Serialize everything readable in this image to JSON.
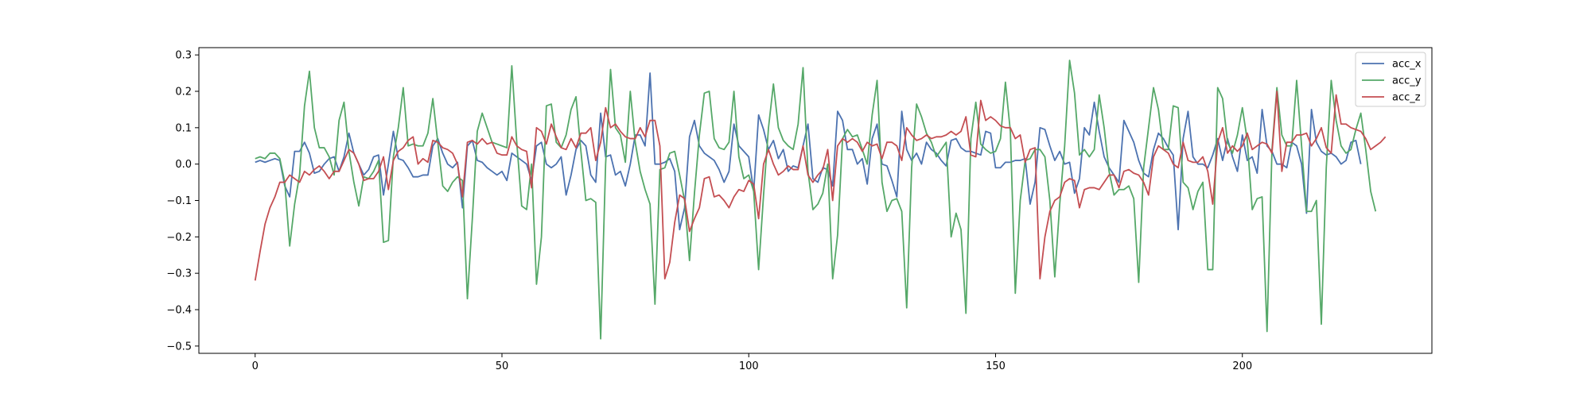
{
  "chart_data": {
    "type": "line",
    "title": "",
    "xlabel": "",
    "ylabel": "",
    "xlim": [
      -11.4,
      238.4
    ],
    "ylim": [
      -0.52,
      0.32
    ],
    "xticks": [
      0,
      50,
      100,
      150,
      200
    ],
    "yticks": [
      0.3,
      0.2,
      0.1,
      0.0,
      -0.1,
      -0.2,
      -0.3,
      -0.4,
      -0.5
    ],
    "ytick_labels": [
      "0.3",
      "0.2",
      "0.1",
      "0.0",
      "−0.1",
      "−0.2",
      "−0.3",
      "−0.4",
      "−0.5"
    ],
    "grid": false,
    "legend_position": "top-right",
    "series": [
      {
        "name": "acc_x",
        "color": "#4c72b0",
        "values": [
          0.005,
          0.01,
          0.005,
          0.01,
          0.015,
          0.01,
          -0.06,
          -0.09,
          0.035,
          0.035,
          0.06,
          0.03,
          -0.025,
          -0.02,
          0.0,
          0.015,
          0.02,
          -0.02,
          0.02,
          0.085,
          0.03,
          0.0,
          -0.03,
          -0.015,
          0.02,
          0.025,
          -0.085,
          0.0,
          0.09,
          0.015,
          0.01,
          -0.01,
          -0.035,
          -0.035,
          -0.03,
          -0.03,
          0.05,
          0.07,
          0.03,
          0.0,
          -0.01,
          0.005,
          -0.12,
          0.05,
          0.065,
          0.01,
          0.005,
          -0.01,
          -0.02,
          -0.03,
          -0.02,
          -0.045,
          0.03,
          0.02,
          0.01,
          0.0,
          -0.045,
          0.05,
          0.06,
          0.0,
          -0.01,
          0.0,
          0.02,
          -0.085,
          -0.03,
          0.04,
          0.065,
          0.05,
          -0.03,
          -0.05,
          0.14,
          0.02,
          0.025,
          -0.03,
          -0.02,
          -0.06,
          0.0,
          0.08,
          0.08,
          0.05,
          0.25,
          0.0,
          0.0,
          0.005,
          0.015,
          -0.02,
          -0.18,
          -0.12,
          0.075,
          0.12,
          0.05,
          0.03,
          0.02,
          0.01,
          -0.015,
          -0.05,
          -0.02,
          0.11,
          0.05,
          0.035,
          0.02,
          -0.075,
          0.135,
          0.095,
          0.04,
          0.065,
          0.015,
          0.04,
          -0.02,
          -0.005,
          -0.01,
          0.05,
          0.11,
          -0.04,
          -0.05,
          -0.01,
          -0.015,
          -0.06,
          0.145,
          0.12,
          0.04,
          0.04,
          0.0,
          0.015,
          -0.055,
          0.07,
          0.11,
          0.0,
          -0.005,
          -0.045,
          -0.09,
          0.145,
          0.04,
          0.01,
          0.03,
          0.0,
          0.06,
          0.04,
          0.03,
          0.01,
          -0.005,
          0.065,
          0.07,
          0.045,
          0.035,
          0.035,
          0.03,
          0.025,
          0.09,
          0.085,
          -0.01,
          -0.01,
          0.005,
          0.005,
          0.01,
          0.01,
          0.015,
          -0.11,
          -0.05,
          0.1,
          0.095,
          0.05,
          0.01,
          0.035,
          0.0,
          0.005,
          -0.08,
          -0.04,
          0.1,
          0.08,
          0.17,
          0.09,
          0.02,
          -0.01,
          -0.03,
          -0.05,
          0.12,
          0.09,
          0.06,
          0.01,
          -0.025,
          -0.035,
          0.04,
          0.085,
          0.07,
          0.045,
          0.025,
          -0.18,
          0.07,
          0.145,
          0.02,
          0.0,
          0.0,
          -0.01,
          0.025,
          0.07,
          0.01,
          0.07,
          0.02,
          -0.02,
          0.08,
          0.01,
          0.02,
          -0.025,
          0.15,
          0.05,
          0.035,
          0.0,
          0.0,
          -0.01,
          0.06,
          0.05,
          0.0,
          -0.135,
          0.15,
          0.06,
          0.035,
          0.025,
          0.03,
          0.02,
          0.0,
          0.01,
          0.06,
          0.065,
          0.0
        ]
      },
      {
        "name": "acc_y",
        "color": "#55a868",
        "values": [
          0.015,
          0.02,
          0.015,
          0.03,
          0.03,
          0.015,
          -0.05,
          -0.225,
          -0.11,
          -0.03,
          0.16,
          0.255,
          0.1,
          0.045,
          0.045,
          0.02,
          -0.03,
          0.12,
          0.17,
          0.035,
          -0.05,
          -0.115,
          -0.035,
          -0.04,
          -0.02,
          0.01,
          -0.215,
          -0.21,
          0.02,
          0.1,
          0.21,
          0.05,
          0.055,
          0.05,
          0.05,
          0.085,
          0.18,
          0.06,
          -0.06,
          -0.075,
          -0.05,
          -0.035,
          -0.045,
          -0.37,
          -0.15,
          0.09,
          0.14,
          0.1,
          0.06,
          0.055,
          0.05,
          0.045,
          0.27,
          0.06,
          -0.115,
          -0.125,
          0.0,
          -0.33,
          -0.2,
          0.16,
          0.165,
          0.06,
          0.045,
          0.08,
          0.15,
          0.185,
          0.035,
          -0.1,
          -0.095,
          -0.105,
          -0.48,
          0.0,
          0.26,
          0.1,
          0.08,
          0.005,
          0.2,
          0.06,
          -0.02,
          -0.07,
          -0.11,
          -0.385,
          -0.015,
          -0.01,
          0.03,
          0.035,
          -0.03,
          -0.1,
          -0.265,
          -0.08,
          0.08,
          0.195,
          0.2,
          0.07,
          0.045,
          0.04,
          0.06,
          0.2,
          0.02,
          -0.04,
          -0.03,
          -0.075,
          -0.29,
          -0.085,
          0.1,
          0.22,
          0.1,
          0.065,
          0.05,
          0.04,
          0.11,
          0.265,
          -0.02,
          -0.125,
          -0.11,
          -0.08,
          0.0,
          -0.315,
          -0.195,
          0.07,
          0.095,
          0.075,
          0.08,
          0.04,
          0.0,
          0.135,
          0.23,
          -0.05,
          -0.13,
          -0.1,
          -0.095,
          -0.13,
          -0.395,
          -0.01,
          0.165,
          0.13,
          0.085,
          0.06,
          0.02,
          0.04,
          0.06,
          -0.2,
          -0.135,
          -0.18,
          -0.41,
          0.07,
          0.17,
          0.055,
          0.04,
          0.03,
          0.035,
          0.07,
          0.225,
          0.09,
          -0.355,
          -0.1,
          0.01,
          0.015,
          0.04,
          0.04,
          0.02,
          -0.1,
          -0.31,
          -0.11,
          0.05,
          0.285,
          0.195,
          0.025,
          0.04,
          0.02,
          0.04,
          0.19,
          0.1,
          -0.02,
          -0.085,
          -0.07,
          -0.07,
          -0.06,
          -0.095,
          -0.325,
          -0.01,
          0.1,
          0.21,
          0.15,
          0.04,
          0.04,
          0.16,
          0.155,
          -0.05,
          -0.065,
          -0.125,
          -0.075,
          -0.05,
          -0.29,
          -0.29,
          0.21,
          0.18,
          0.06,
          0.03,
          0.08,
          0.155,
          0.065,
          -0.125,
          -0.095,
          -0.09,
          -0.46,
          0.04,
          0.21,
          0.08,
          0.05,
          0.05,
          0.23,
          0.05,
          -0.13,
          -0.13,
          -0.1,
          -0.44,
          -0.01,
          0.23,
          0.12,
          0.05,
          0.03,
          0.04,
          0.095,
          0.14,
          0.04,
          -0.075,
          -0.13
        ]
      },
      {
        "name": "acc_z",
        "color": "#c44e52",
        "values": [
          -0.32,
          -0.24,
          -0.165,
          -0.12,
          -0.09,
          -0.05,
          -0.05,
          -0.03,
          -0.04,
          -0.05,
          -0.02,
          -0.03,
          -0.015,
          -0.005,
          -0.02,
          -0.04,
          -0.02,
          -0.02,
          0.01,
          0.04,
          0.03,
          0.0,
          -0.045,
          -0.04,
          -0.04,
          -0.02,
          0.02,
          -0.07,
          0.01,
          0.035,
          0.045,
          0.065,
          0.075,
          0.0,
          0.015,
          0.005,
          0.065,
          0.06,
          0.045,
          0.04,
          0.03,
          0.0,
          -0.09,
          0.06,
          0.065,
          0.055,
          0.07,
          0.055,
          0.06,
          0.03,
          0.025,
          0.025,
          0.075,
          0.05,
          0.04,
          0.035,
          -0.065,
          0.1,
          0.09,
          0.055,
          0.11,
          0.075,
          0.045,
          0.04,
          0.07,
          0.045,
          0.085,
          0.085,
          0.1,
          0.01,
          0.06,
          0.155,
          0.1,
          0.11,
          0.09,
          0.075,
          0.07,
          0.07,
          0.1,
          0.075,
          0.12,
          0.12,
          0.05,
          -0.315,
          -0.27,
          -0.16,
          -0.085,
          -0.095,
          -0.185,
          -0.15,
          -0.12,
          -0.04,
          -0.035,
          -0.09,
          -0.085,
          -0.1,
          -0.12,
          -0.09,
          -0.07,
          -0.075,
          -0.045,
          -0.055,
          -0.15,
          0.0,
          0.04,
          0.0,
          -0.03,
          -0.02,
          -0.005,
          -0.015,
          -0.015,
          0.05,
          -0.03,
          -0.05,
          -0.03,
          -0.015,
          0.04,
          -0.1,
          0.05,
          0.07,
          0.06,
          0.07,
          0.06,
          0.035,
          0.06,
          0.05,
          0.055,
          0.015,
          0.06,
          0.06,
          0.05,
          0.01,
          0.1,
          0.08,
          0.065,
          0.07,
          0.08,
          0.07,
          0.075,
          0.075,
          0.08,
          0.09,
          0.08,
          0.09,
          0.13,
          0.025,
          0.02,
          0.175,
          0.12,
          0.13,
          0.12,
          0.105,
          0.1,
          0.1,
          0.07,
          0.08,
          0.005,
          0.04,
          0.045,
          -0.315,
          -0.2,
          -0.13,
          -0.1,
          -0.09,
          -0.05,
          -0.04,
          -0.045,
          -0.12,
          -0.07,
          -0.065,
          -0.065,
          -0.07,
          -0.05,
          -0.03,
          -0.03,
          -0.065,
          -0.02,
          -0.015,
          -0.025,
          -0.03,
          -0.05,
          -0.085,
          0.02,
          0.05,
          0.04,
          0.03,
          0.0,
          -0.01,
          0.06,
          0.01,
          0.005,
          0.005,
          0.02,
          -0.02,
          -0.11,
          0.06,
          0.1,
          0.03,
          0.05,
          0.035,
          0.05,
          0.085,
          0.04,
          0.05,
          0.06,
          0.055,
          0.03,
          0.2,
          -0.02,
          0.06,
          0.06,
          0.08,
          0.08,
          0.085,
          0.05,
          0.07,
          0.1,
          0.045,
          0.03,
          0.19,
          0.11,
          0.11,
          0.1,
          0.095,
          0.09,
          0.07,
          0.04,
          0.05,
          0.06,
          0.075
        ]
      }
    ]
  }
}
